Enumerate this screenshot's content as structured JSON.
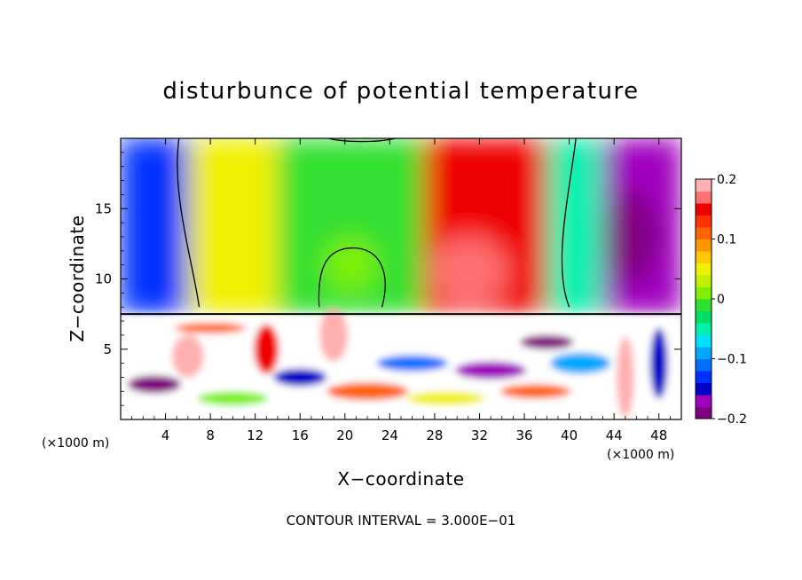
{
  "chart_data": {
    "type": "heatmap",
    "title": "disturbunce of potential temperature",
    "xlabel": "X−coordinate",
    "ylabel": "Z−coordinate",
    "x_unit_left": "(×1000 m)",
    "x_unit_right": "(×1000 m)",
    "xlim": [
      0,
      50
    ],
    "ylim": [
      0,
      20
    ],
    "xticks": [
      4,
      8,
      12,
      16,
      20,
      24,
      28,
      32,
      36,
      40,
      44,
      48
    ],
    "xtick_labels": [
      "4",
      "8",
      "12",
      "16",
      "20",
      "24",
      "28",
      "32",
      "36",
      "40",
      "44",
      "48"
    ],
    "yticks": [
      5,
      10,
      15
    ],
    "ytick_labels": [
      "5",
      "10",
      "15"
    ],
    "colorbar": {
      "min": -0.2,
      "max": 0.2,
      "ticks": [
        0.2,
        0.1,
        0,
        -0.1,
        -0.2
      ],
      "tick_labels": [
        "0.2",
        "0.1",
        "0",
        "−0.1",
        "−0.2"
      ],
      "colors": [
        "#800080",
        "#a000c0",
        "#0000c8",
        "#0030ff",
        "#0070ff",
        "#00a8ff",
        "#00e0ff",
        "#00f0b0",
        "#00e060",
        "#30e030",
        "#80f000",
        "#c0f000",
        "#f0f000",
        "#ffc800",
        "#ff9600",
        "#ff6400",
        "#ff3200",
        "#f00000",
        "#ff7070",
        "#ffb0b0"
      ]
    },
    "contour_interval_text": "CONTOUR INTERVAL = 3.000E−01",
    "regions_upper": [
      {
        "x": [
          0,
          6
        ],
        "z": [
          7.5,
          20
        ],
        "value": -0.13
      },
      {
        "x": [
          6,
          14
        ],
        "z": [
          7.5,
          20
        ],
        "value": 0.05
      },
      {
        "x": [
          14,
          27
        ],
        "z": [
          7.5,
          20
        ],
        "value": -0.01
      },
      {
        "x": [
          27,
          38
        ],
        "z": [
          7.5,
          20
        ],
        "value": 0.14
      },
      {
        "x": [
          38,
          43
        ],
        "z": [
          7.5,
          20
        ],
        "value": -0.05
      },
      {
        "x": [
          43,
          50
        ],
        "z": [
          7.5,
          20
        ],
        "value": -0.17
      }
    ],
    "regions_lower": [
      {
        "x": [
          0,
          50
        ],
        "z": [
          0,
          7.5
        ],
        "value": "mixed"
      }
    ],
    "interface_z": 7.5
  }
}
